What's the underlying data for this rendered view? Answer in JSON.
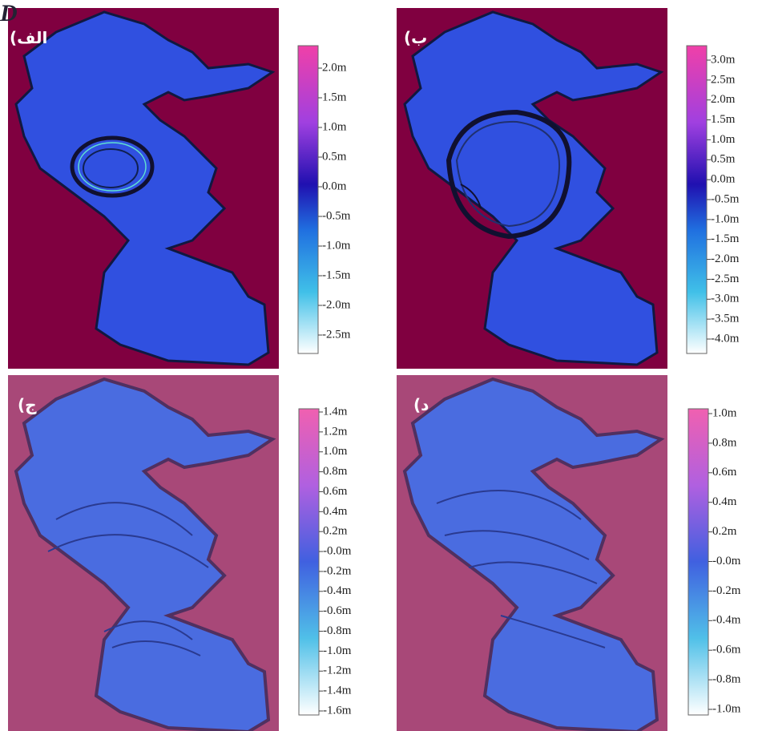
{
  "corner_letter": "D",
  "panels": [
    {
      "label": "(الف",
      "colorbar": {
        "ticks": [
          "2.0m",
          "1.5m",
          "1.0m",
          "0.5m",
          "0.0m",
          "-0.5m",
          "-1.0m",
          "-1.5m",
          "-2.0m",
          "-2.5m"
        ]
      }
    },
    {
      "label": "(ب",
      "colorbar": {
        "ticks": [
          "3.0m",
          "2.5m",
          "2.0m",
          "1.5m",
          "1.0m",
          "0.5m",
          "0.0m",
          "-0.5m",
          "-1.0m",
          "-1.5m",
          "-2.0m",
          "-2.5m",
          "-3.0m",
          "-3.5m",
          "-4.0m"
        ]
      }
    },
    {
      "label": "(ج",
      "colorbar": {
        "ticks": [
          "1.4m",
          "1.2m",
          "1.0m",
          "0.8m",
          "0.6m",
          "0.4m",
          "0.2m",
          "-0.0m",
          "-0.2m",
          "-0.4m",
          "-0.6m",
          "-0.8m",
          "-1.0m",
          "-1.2m",
          "-1.4m",
          "-1.6m"
        ]
      }
    },
    {
      "label": "(د",
      "colorbar": {
        "ticks": [
          "1.0m",
          "0.8m",
          "0.6m",
          "0.4m",
          "0.2m",
          "-0.0m",
          "-0.2m",
          "-0.4m",
          "-0.6m",
          "-0.8m",
          "-1.0m"
        ]
      }
    }
  ]
}
